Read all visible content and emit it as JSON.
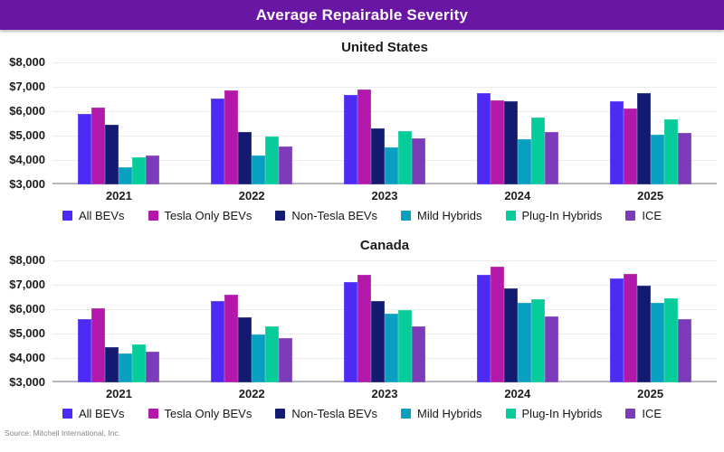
{
  "banner": {
    "title": "Average Repairable Severity"
  },
  "source": "Source: Mitchell International, Inc.",
  "colors": {
    "banner": "#6a16a5",
    "all_bevs": "#4e2af5",
    "tesla_only_bevs": "#b218aa",
    "non_tesla_bevs": "#131b70",
    "mild_hybrids": "#089fc0",
    "plug_in_hybrids": "#06cc9c",
    "ice": "#7c3cba",
    "gridline": "#ececef",
    "baseline": "#b6b6bc"
  },
  "chart_data": [
    {
      "type": "bar",
      "title": "United States",
      "categories": [
        "2021",
        "2022",
        "2023",
        "2024",
        "2025"
      ],
      "series": [
        {
          "name": "All BEVs",
          "color": "#4e2af5",
          "values": [
            5900,
            6500,
            6650,
            6750,
            6400
          ]
        },
        {
          "name": "Tesla Only BEVs",
          "color": "#b218aa",
          "values": [
            6150,
            6850,
            6900,
            6450,
            6100
          ]
        },
        {
          "name": "Non-Tesla BEVs",
          "color": "#131b70",
          "values": [
            5450,
            5150,
            5300,
            6400,
            6750
          ]
        },
        {
          "name": "Mild Hybrids",
          "color": "#089fc0",
          "values": [
            3700,
            4200,
            4500,
            4850,
            5050
          ]
        },
        {
          "name": "Plug-In Hybrids",
          "color": "#06cc9c",
          "values": [
            4100,
            4950,
            5200,
            5750,
            5650
          ]
        },
        {
          "name": "ICE",
          "color": "#7c3cba",
          "values": [
            4200,
            4550,
            4900,
            5150,
            5100
          ]
        }
      ],
      "ylim": [
        3000,
        8000
      ],
      "ytick_step": 1000,
      "ytick_labels": [
        "$8,000",
        "$7,000",
        "$6,000",
        "$5,000",
        "$4,000",
        "$3,000"
      ],
      "grid": true,
      "legend_position": "bottom"
    },
    {
      "type": "bar",
      "title": "Canada",
      "categories": [
        "2021",
        "2022",
        "2023",
        "2024",
        "2025"
      ],
      "series": [
        {
          "name": "All BEVs",
          "color": "#4e2af5",
          "values": [
            5600,
            6350,
            7100,
            7400,
            7250
          ]
        },
        {
          "name": "Tesla Only BEVs",
          "color": "#b218aa",
          "values": [
            6050,
            6600,
            7400,
            7750,
            7450
          ]
        },
        {
          "name": "Non-Tesla BEVs",
          "color": "#131b70",
          "values": [
            4450,
            5650,
            6350,
            6850,
            6950
          ]
        },
        {
          "name": "Mild Hybrids",
          "color": "#089fc0",
          "values": [
            4200,
            4950,
            5800,
            6250,
            6250
          ]
        },
        {
          "name": "Plug-In Hybrids",
          "color": "#06cc9c",
          "values": [
            4550,
            5300,
            5950,
            6400,
            6450
          ]
        },
        {
          "name": "ICE",
          "color": "#7c3cba",
          "values": [
            4250,
            4800,
            5300,
            5700,
            5600
          ]
        }
      ],
      "ylim": [
        3000,
        8000
      ],
      "ytick_step": 1000,
      "ytick_labels": [
        "$8,000",
        "$7,000",
        "$6,000",
        "$5,000",
        "$4,000",
        "$3,000"
      ],
      "grid": true,
      "legend_position": "bottom"
    }
  ]
}
